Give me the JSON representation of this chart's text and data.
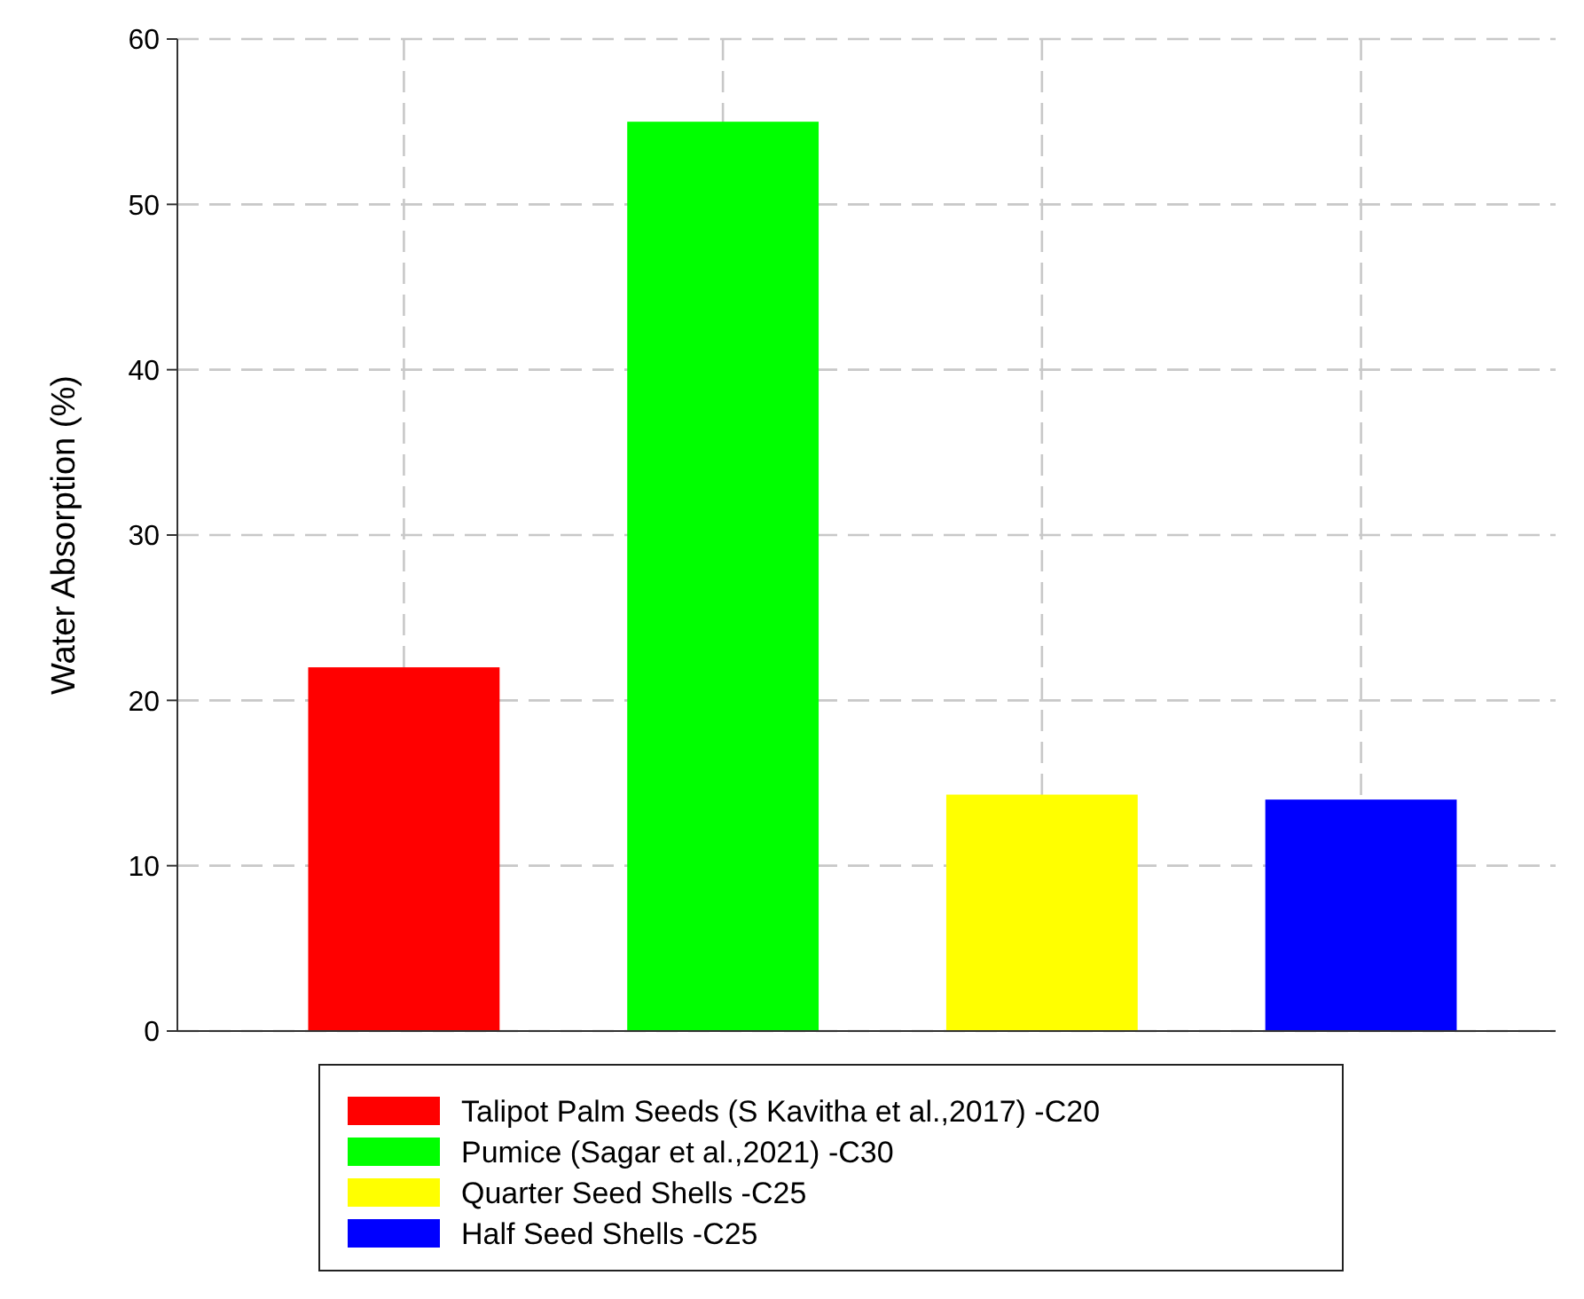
{
  "chart_data": {
    "type": "bar",
    "ylabel": "Water Absorption (%)",
    "categories": [
      null,
      null,
      null,
      null
    ],
    "series": [
      {
        "name": "Talipot Palm Seeds (S Kavitha et al.,2017) -C20",
        "color": "#ff0000",
        "values": [
          22,
          null,
          null,
          null
        ]
      },
      {
        "name": "Pumice (Sagar et al.,2021) -C30",
        "color": "#00ff00",
        "values": [
          null,
          55,
          null,
          null
        ]
      },
      {
        "name": "Quarter Seed Shells -C25",
        "color": "#ffff00",
        "values": [
          null,
          null,
          14.3,
          null
        ]
      },
      {
        "name": "Half Seed Shells -C25",
        "color": "#0000ff",
        "values": [
          null,
          null,
          null,
          14
        ]
      }
    ],
    "ylim": [
      0,
      60
    ],
    "yticks": [
      0,
      10,
      20,
      30,
      40,
      50,
      60
    ],
    "grid": true,
    "legend": "bottom"
  }
}
